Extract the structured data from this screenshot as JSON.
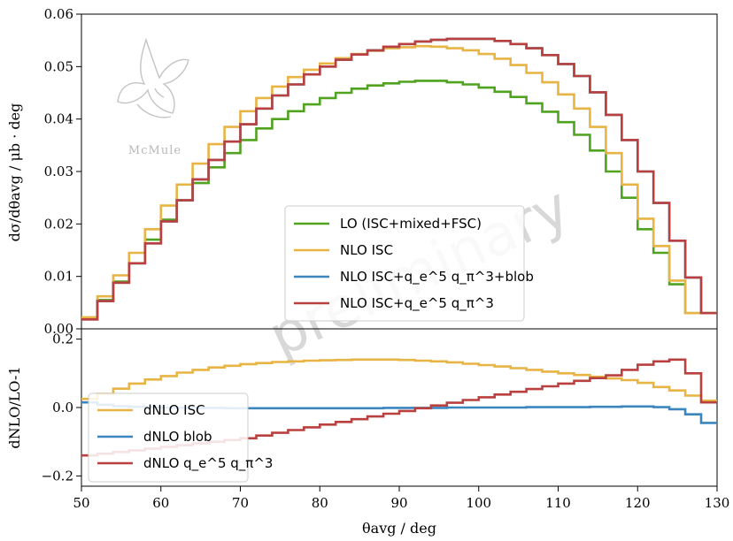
{
  "watermark": "preliminary",
  "logo": {
    "text": "McMule"
  },
  "colors": {
    "LO": "#4fa31f",
    "NLO_ISC": "#e8b444",
    "blob": "#3c86c0",
    "q5q3": "#b9403e"
  },
  "chart_data": [
    {
      "type": "line",
      "style": "step",
      "xlabel": "θavg / deg",
      "ylabel": "dσ/dθavg / μb · deg",
      "xlim": [
        50,
        130
      ],
      "ylim": [
        0,
        0.06
      ],
      "xticks": [
        "50",
        "60",
        "70",
        "80",
        "90",
        "100",
        "110",
        "120",
        "130"
      ],
      "yticks": [
        "0.00",
        "0.01",
        "0.02",
        "0.03",
        "0.04",
        "0.05",
        "0.06"
      ],
      "legend_position": "lower-center",
      "bin_edges": [
        50,
        52,
        54,
        56,
        58,
        60,
        62,
        64,
        66,
        68,
        70,
        72,
        74,
        76,
        78,
        80,
        82,
        84,
        86,
        88,
        90,
        92,
        94,
        96,
        98,
        100,
        102,
        104,
        106,
        108,
        110,
        112,
        114,
        116,
        118,
        120,
        122,
        124,
        126,
        128,
        130
      ],
      "series": [
        {
          "name": "LO (ISC+mixed+FSC)",
          "color_key": "LO",
          "values": [
            0.002,
            0.0055,
            0.009,
            0.0125,
            0.017,
            0.0208,
            0.0245,
            0.0278,
            0.0308,
            0.0335,
            0.036,
            0.0382,
            0.04,
            0.0415,
            0.0428,
            0.044,
            0.045,
            0.0458,
            0.0464,
            0.0468,
            0.0471,
            0.0473,
            0.0473,
            0.047,
            0.0466,
            0.046,
            0.0452,
            0.0442,
            0.043,
            0.0414,
            0.0394,
            0.037,
            0.034,
            0.03,
            0.025,
            0.019,
            0.0145,
            0.0085,
            0.003,
            0.003
          ]
        },
        {
          "name": "NLO ISC",
          "color_key": "NLO_ISC",
          "values": [
            0.0022,
            0.0062,
            0.0102,
            0.0145,
            0.019,
            0.0235,
            0.0275,
            0.0315,
            0.0352,
            0.0385,
            0.0415,
            0.044,
            0.0462,
            0.048,
            0.0494,
            0.0506,
            0.0516,
            0.0524,
            0.053,
            0.0535,
            0.0537,
            0.0539,
            0.0538,
            0.0535,
            0.0531,
            0.0524,
            0.0515,
            0.0503,
            0.0488,
            0.047,
            0.0447,
            0.042,
            0.0385,
            0.0335,
            0.0275,
            0.021,
            0.0158,
            0.0092,
            0.003,
            0.003
          ]
        },
        {
          "name": "NLO ISC+q_e^5 q_π^3+blob",
          "color_key": "blob",
          "values": [
            0.0018,
            0.0053,
            0.0088,
            0.0125,
            0.0163,
            0.0205,
            0.0245,
            0.0285,
            0.0322,
            0.0357,
            0.039,
            0.042,
            0.0445,
            0.0466,
            0.0485,
            0.05,
            0.0513,
            0.0523,
            0.0531,
            0.0538,
            0.0543,
            0.0548,
            0.0551,
            0.0553,
            0.0553,
            0.0553,
            0.0549,
            0.0543,
            0.0535,
            0.0522,
            0.0505,
            0.0482,
            0.0451,
            0.0408,
            0.036,
            0.03,
            0.024,
            0.0168,
            0.0098,
            0.003
          ]
        },
        {
          "name": "NLO ISC+q_e^5 q_π^3",
          "color_key": "q5q3",
          "values": [
            0.0018,
            0.0053,
            0.0088,
            0.0125,
            0.0163,
            0.0205,
            0.0245,
            0.0285,
            0.0322,
            0.0357,
            0.039,
            0.042,
            0.0445,
            0.0466,
            0.0485,
            0.05,
            0.0513,
            0.0523,
            0.0531,
            0.0538,
            0.0543,
            0.0548,
            0.0551,
            0.0553,
            0.0553,
            0.0553,
            0.0549,
            0.0543,
            0.0535,
            0.0522,
            0.0505,
            0.0482,
            0.0451,
            0.0408,
            0.036,
            0.03,
            0.024,
            0.0168,
            0.0098,
            0.003
          ]
        }
      ]
    },
    {
      "type": "line",
      "style": "step",
      "xlabel": "θavg / deg",
      "ylabel": "dNLO/LO-1",
      "xlim": [
        50,
        130
      ],
      "ylim": [
        -0.23,
        0.23
      ],
      "xticks": [
        "50",
        "60",
        "70",
        "80",
        "90",
        "100",
        "110",
        "120",
        "130"
      ],
      "yticks": [
        "−0.2",
        "0.0",
        "0.2"
      ],
      "legend_position": "lower-left",
      "bin_edges": [
        50,
        52,
        54,
        56,
        58,
        60,
        62,
        64,
        66,
        68,
        70,
        72,
        74,
        76,
        78,
        80,
        82,
        84,
        86,
        88,
        90,
        92,
        94,
        96,
        98,
        100,
        102,
        104,
        106,
        108,
        110,
        112,
        114,
        116,
        118,
        120,
        122,
        124,
        126,
        128,
        130
      ],
      "series": [
        {
          "name": "dNLO ISC",
          "color_key": "NLO_ISC",
          "values": [
            0.025,
            0.04,
            0.055,
            0.07,
            0.082,
            0.092,
            0.102,
            0.11,
            0.117,
            0.122,
            0.127,
            0.13,
            0.133,
            0.135,
            0.137,
            0.138,
            0.139,
            0.14,
            0.14,
            0.14,
            0.139,
            0.137,
            0.135,
            0.132,
            0.128,
            0.124,
            0.12,
            0.115,
            0.11,
            0.105,
            0.1,
            0.095,
            0.09,
            0.085,
            0.08,
            0.072,
            0.06,
            0.05,
            0.035,
            0.02
          ]
        },
        {
          "name": "dNLO blob",
          "color_key": "blob",
          "values": [
            0.015,
            0.008,
            0.004,
            0.002,
            0.001,
            0.0,
            -0.001,
            -0.001,
            -0.001,
            -0.002,
            -0.002,
            -0.002,
            -0.002,
            -0.002,
            -0.002,
            -0.002,
            -0.002,
            -0.002,
            -0.002,
            -0.001,
            -0.001,
            -0.001,
            -0.001,
            0.0,
            0.0,
            0.0,
            0.0,
            0.0,
            0.001,
            0.001,
            0.001,
            0.001,
            0.002,
            0.002,
            0.003,
            0.003,
            0.001,
            -0.005,
            -0.02,
            -0.045
          ]
        },
        {
          "name": "dNLO q_e^5 q_π^3",
          "color_key": "q5q3",
          "values": [
            -0.14,
            -0.135,
            -0.13,
            -0.125,
            -0.12,
            -0.115,
            -0.11,
            -0.105,
            -0.1,
            -0.095,
            -0.09,
            -0.082,
            -0.074,
            -0.066,
            -0.058,
            -0.05,
            -0.042,
            -0.034,
            -0.026,
            -0.018,
            -0.01,
            -0.002,
            0.006,
            0.014,
            0.022,
            0.03,
            0.038,
            0.046,
            0.054,
            0.062,
            0.07,
            0.078,
            0.086,
            0.094,
            0.11,
            0.125,
            0.135,
            0.14,
            0.1,
            0.015
          ]
        }
      ]
    }
  ]
}
